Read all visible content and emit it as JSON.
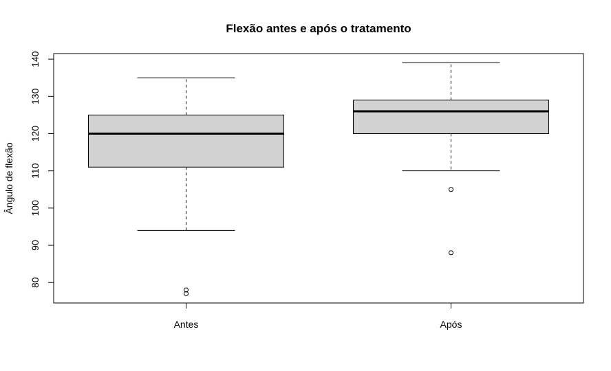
{
  "chart_data": {
    "type": "boxplot",
    "title": "Flexão antes e após o tratamento",
    "xlabel": "",
    "ylabel": "Ângulo de flexão",
    "ylim": [
      74.5,
      141.5
    ],
    "yticks": [
      80,
      90,
      100,
      110,
      120,
      130,
      140
    ],
    "grid": false,
    "box_fill": "#d3d3d3",
    "categories": [
      "Antes",
      "Após"
    ],
    "boxes": [
      {
        "label": "Antes",
        "whisker_low": 94,
        "q1": 111,
        "median": 120,
        "q3": 125,
        "whisker_high": 135,
        "outliers": [
          77,
          78
        ]
      },
      {
        "label": "Após",
        "whisker_low": 110,
        "q1": 120,
        "median": 126,
        "q3": 129,
        "whisker_high": 139,
        "outliers": [
          88,
          105
        ]
      }
    ]
  }
}
